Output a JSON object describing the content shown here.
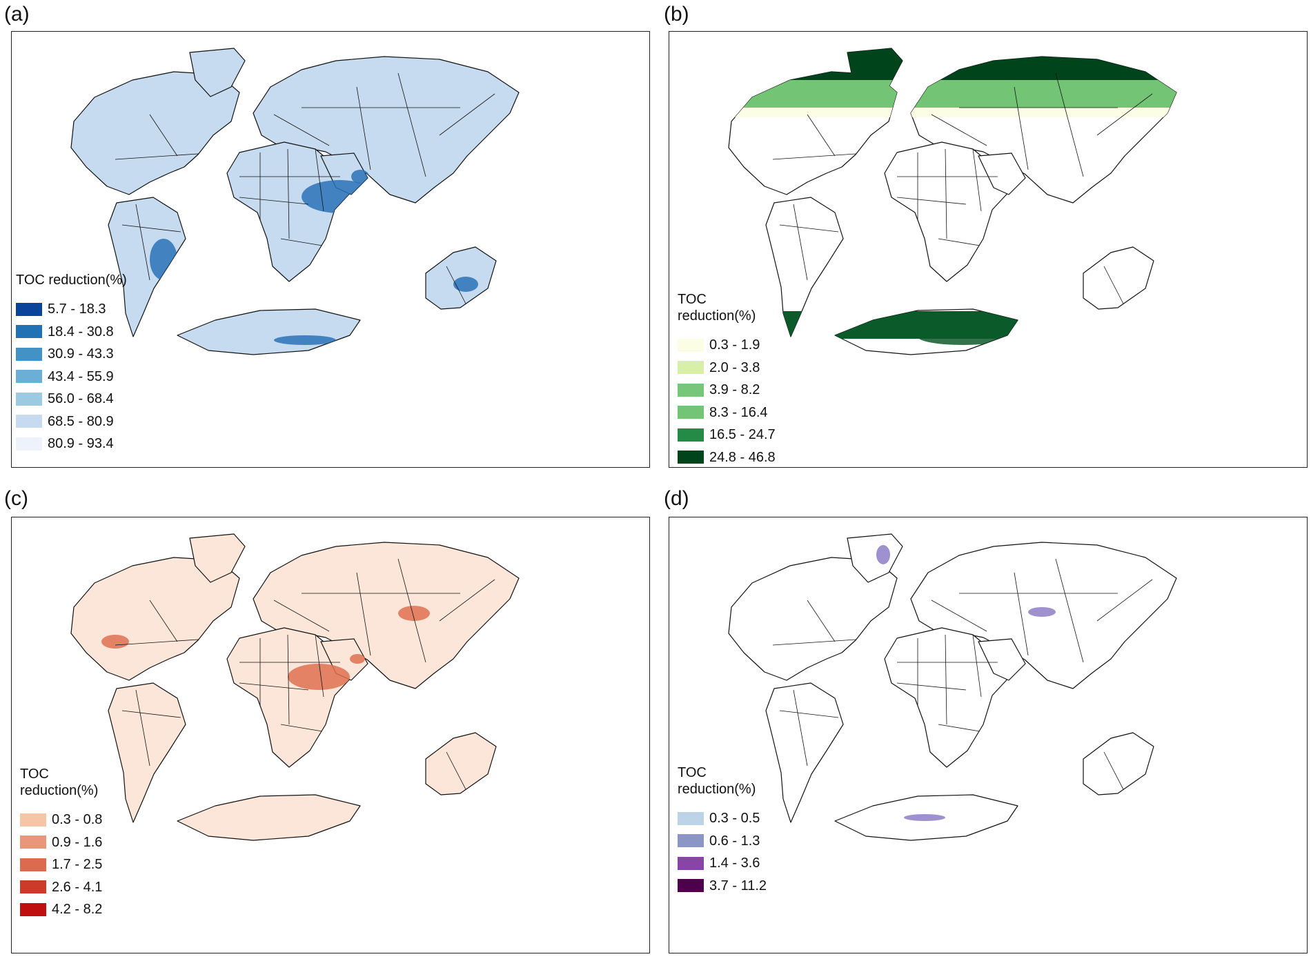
{
  "panels": [
    {
      "label": "(a)",
      "legend_title": "TOC reduction(%)",
      "land_color": "#c6dbef",
      "hotspot_color": "#2a72b8",
      "items": [
        {
          "label": "5.7 - 18.3",
          "color": "#08459a"
        },
        {
          "label": "18.4 - 30.8",
          "color": "#2171b5"
        },
        {
          "label": "30.9 - 43.3",
          "color": "#4292c6"
        },
        {
          "label": "43.4 - 55.9",
          "color": "#6baed6"
        },
        {
          "label": "56.0 - 68.4",
          "color": "#9ecae1"
        },
        {
          "label": "68.5 - 80.9",
          "color": "#c6dbef"
        },
        {
          "label": "80.9 - 93.4",
          "color": "#eef3fb"
        }
      ]
    },
    {
      "label": "(b)",
      "legend_title": "TOC reduction(%)",
      "land_color": "#ffffff",
      "hotspot_color": "#0f5a2c",
      "items": [
        {
          "label": "0.3 - 1.9",
          "color": "#fbfde4"
        },
        {
          "label": "2.0 - 3.8",
          "color": "#d8efa8"
        },
        {
          "label": "3.9 - 8.2",
          "color": "#78c679"
        },
        {
          "label": "8.3 - 16.4",
          "color": "#74c476"
        },
        {
          "label": "16.5 - 24.7",
          "color": "#238b45"
        },
        {
          "label": "24.8 - 46.8",
          "color": "#00441b"
        }
      ]
    },
    {
      "label": "(c)",
      "legend_title": "TOC reduction(%)",
      "land_color": "#fbe6d9",
      "hotspot_color": "#de7050",
      "items": [
        {
          "label": "0.3 - 0.8",
          "color": "#f4c6a6"
        },
        {
          "label": "0.9 - 1.6",
          "color": "#e9967a"
        },
        {
          "label": "1.7 - 2.5",
          "color": "#dd6a4f"
        },
        {
          "label": "2.6 - 4.1",
          "color": "#cc3a2a"
        },
        {
          "label": "4.2 - 8.2",
          "color": "#c00f0f"
        }
      ]
    },
    {
      "label": "(d)",
      "legend_title": "TOC reduction(%)",
      "land_color": "#ffffff",
      "hotspot_color": "#8d7ec6",
      "items": [
        {
          "label": "0.3 - 0.5",
          "color": "#bcd3e8"
        },
        {
          "label": "0.6 - 1.3",
          "color": "#8c96c6"
        },
        {
          "label": "1.4 - 3.6",
          "color": "#8845a6"
        },
        {
          "label": "3.7 - 11.2",
          "color": "#4d004b"
        }
      ]
    }
  ]
}
